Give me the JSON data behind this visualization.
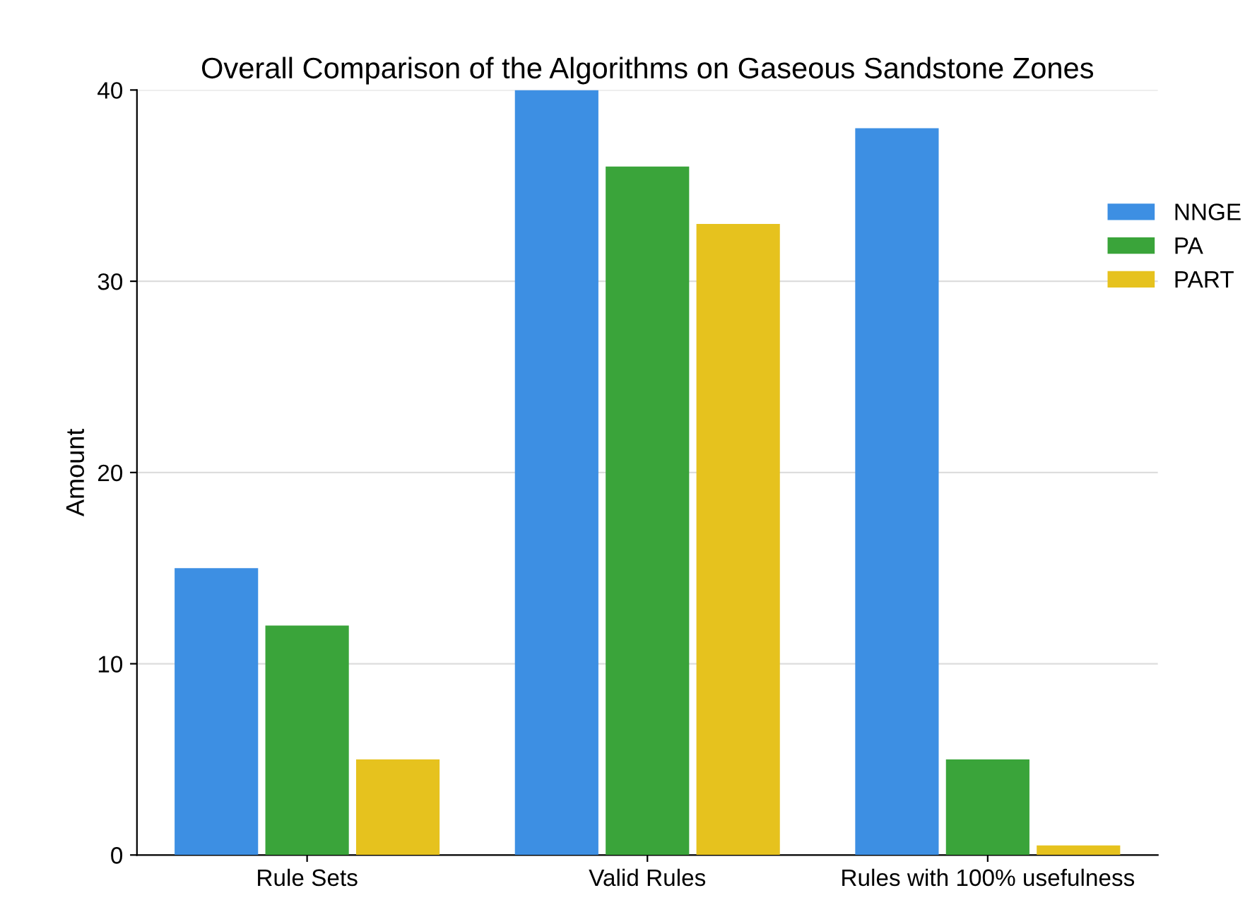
{
  "chart_data": {
    "type": "bar",
    "title": "Overall Comparison of the Algorithms on Gaseous Sandstone Zones",
    "ylabel": "Amount",
    "categories": [
      "Rule Sets",
      "Valid Rules",
      "Rules with 100% usefulness"
    ],
    "series": [
      {
        "name": "NNGE",
        "color": "#3d8fe3",
        "values": [
          15,
          40,
          38
        ]
      },
      {
        "name": "PA",
        "color": "#3aa43a",
        "values": [
          12,
          36,
          5
        ]
      },
      {
        "name": "PART",
        "color": "#e6c21e",
        "values": [
          5,
          33,
          0.5
        ]
      }
    ],
    "ylim": [
      0,
      40
    ],
    "yticks": [
      0,
      10,
      20,
      30,
      40
    ],
    "grid": "y",
    "legend": "top right"
  }
}
